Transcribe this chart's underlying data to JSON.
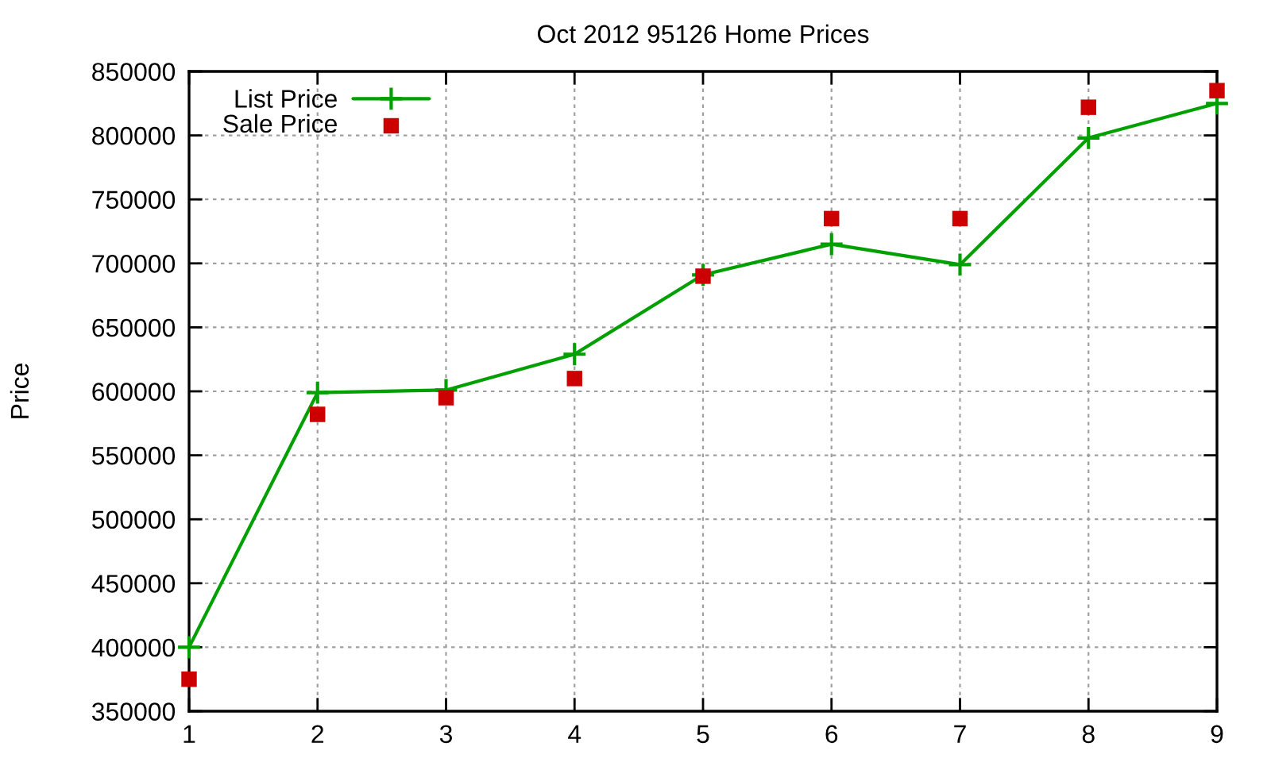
{
  "chart_data": {
    "type": "line",
    "title": "Oct 2012 95126 Home Prices",
    "ylabel": "Price",
    "x": [
      1,
      2,
      3,
      4,
      5,
      6,
      7,
      8,
      9
    ],
    "series": [
      {
        "name": "List Price",
        "color": "#00a000",
        "marker": "cross",
        "line_style": "solid",
        "values": [
          400000,
          599000,
          601000,
          629000,
          691000,
          715000,
          699000,
          798000,
          825000
        ]
      },
      {
        "name": "Sale Price",
        "type": "scatter",
        "color": "#cc0000",
        "marker": "square",
        "values": [
          375000,
          582000,
          595000,
          610000,
          690000,
          735000,
          735000,
          822000,
          835000
        ]
      }
    ],
    "xlim": [
      1,
      9
    ],
    "xticks": [
      1,
      2,
      3,
      4,
      5,
      6,
      7,
      8,
      9
    ],
    "ylim": [
      350000,
      850000
    ],
    "yticks": [
      350000,
      400000,
      450000,
      500000,
      550000,
      600000,
      650000,
      700000,
      750000,
      800000,
      850000
    ],
    "grid": true,
    "legend": "top left"
  }
}
